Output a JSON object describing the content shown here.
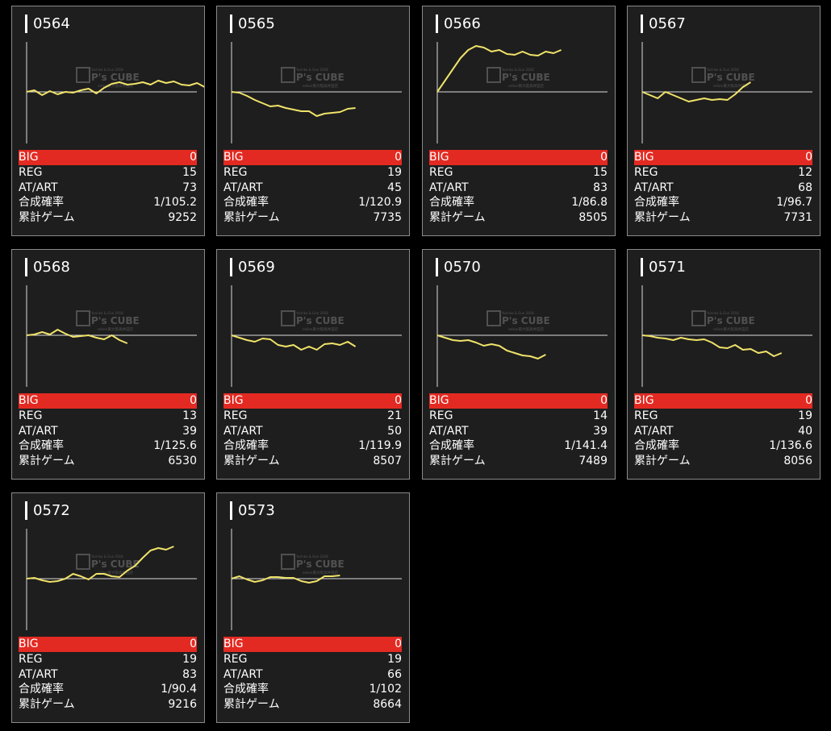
{
  "labels": {
    "big": "BIG",
    "reg": "REG",
    "at": "AT/ART",
    "rate": "合成確率",
    "games": "累計ゲーム"
  },
  "watermark": {
    "line1": "Yurinko & Gun 2018",
    "brand": "P's CUBE",
    "line2": "edion東大阪高井田店"
  },
  "colors": {
    "line": "#f0e36a",
    "big_bg": "#e32a22",
    "card_bg": "#1e1e1e"
  },
  "machines": [
    {
      "id": "0564",
      "big": "0",
      "reg": "15",
      "at": "73",
      "rate": "1/105.2",
      "games": "9252",
      "trend": [
        0,
        2,
        -4,
        1,
        -3,
        0,
        -1,
        2,
        4,
        -2,
        5,
        10,
        12,
        9,
        10,
        12,
        9,
        14,
        11,
        13,
        9,
        8,
        11,
        6,
        6,
        9
      ]
    },
    {
      "id": "0565",
      "big": "0",
      "reg": "19",
      "at": "45",
      "rate": "1/120.9",
      "games": "7735",
      "trend": [
        0,
        -1,
        -5,
        -10,
        -14,
        -18,
        -17,
        -20,
        -22,
        -24,
        -24,
        -30,
        -27,
        -26,
        -25,
        -21,
        -20
      ]
    },
    {
      "id": "0566",
      "big": "0",
      "reg": "15",
      "at": "83",
      "rate": "1/86.8",
      "games": "8505",
      "trend": [
        0,
        14,
        28,
        42,
        52,
        57,
        55,
        50,
        52,
        47,
        46,
        50,
        46,
        45,
        50,
        48,
        52
      ]
    },
    {
      "id": "0567",
      "big": "0",
      "reg": "12",
      "at": "68",
      "rate": "1/96.7",
      "games": "7731",
      "trend": [
        0,
        -4,
        -8,
        0,
        -4,
        -8,
        -12,
        -10,
        -8,
        -10,
        -9,
        -10,
        -3,
        6,
        12
      ]
    },
    {
      "id": "0568",
      "big": "0",
      "reg": "13",
      "at": "39",
      "rate": "1/125.6",
      "games": "6530",
      "trend": [
        0,
        1,
        4,
        1,
        7,
        2,
        -2,
        -1,
        0,
        -3,
        -5,
        0,
        -6,
        -10
      ]
    },
    {
      "id": "0569",
      "big": "0",
      "reg": "21",
      "at": "50",
      "rate": "1/119.9",
      "games": "8507",
      "trend": [
        0,
        -3,
        -6,
        -8,
        -4,
        -5,
        -12,
        -14,
        -12,
        -18,
        -14,
        -18,
        -11,
        -10,
        -12,
        -8,
        -14
      ]
    },
    {
      "id": "0570",
      "big": "0",
      "reg": "14",
      "at": "39",
      "rate": "1/141.4",
      "games": "7489",
      "trend": [
        0,
        -3,
        -6,
        -7,
        -6,
        -9,
        -13,
        -11,
        -13,
        -19,
        -22,
        -25,
        -26,
        -29,
        -24
      ]
    },
    {
      "id": "0571",
      "big": "0",
      "reg": "19",
      "at": "40",
      "rate": "1/136.6",
      "games": "8056",
      "trend": [
        0,
        -1,
        -3,
        -4,
        -6,
        -3,
        -5,
        -6,
        -5,
        -9,
        -15,
        -16,
        -12,
        -18,
        -17,
        -22,
        -20,
        -26,
        -22
      ]
    },
    {
      "id": "0572",
      "big": "0",
      "reg": "19",
      "at": "83",
      "rate": "1/90.4",
      "games": "9216",
      "trend": [
        0,
        1,
        -2,
        -4,
        -3,
        0,
        6,
        3,
        -1,
        6,
        6,
        3,
        2,
        10,
        16,
        26,
        35,
        38,
        36,
        40
      ]
    },
    {
      "id": "0573",
      "big": "0",
      "reg": "19",
      "at": "66",
      "rate": "1/102",
      "games": "8664",
      "trend": [
        0,
        3,
        -1,
        -4,
        -2,
        2,
        2,
        1,
        1,
        -3,
        -5,
        -3,
        3,
        3,
        4
      ]
    }
  ]
}
